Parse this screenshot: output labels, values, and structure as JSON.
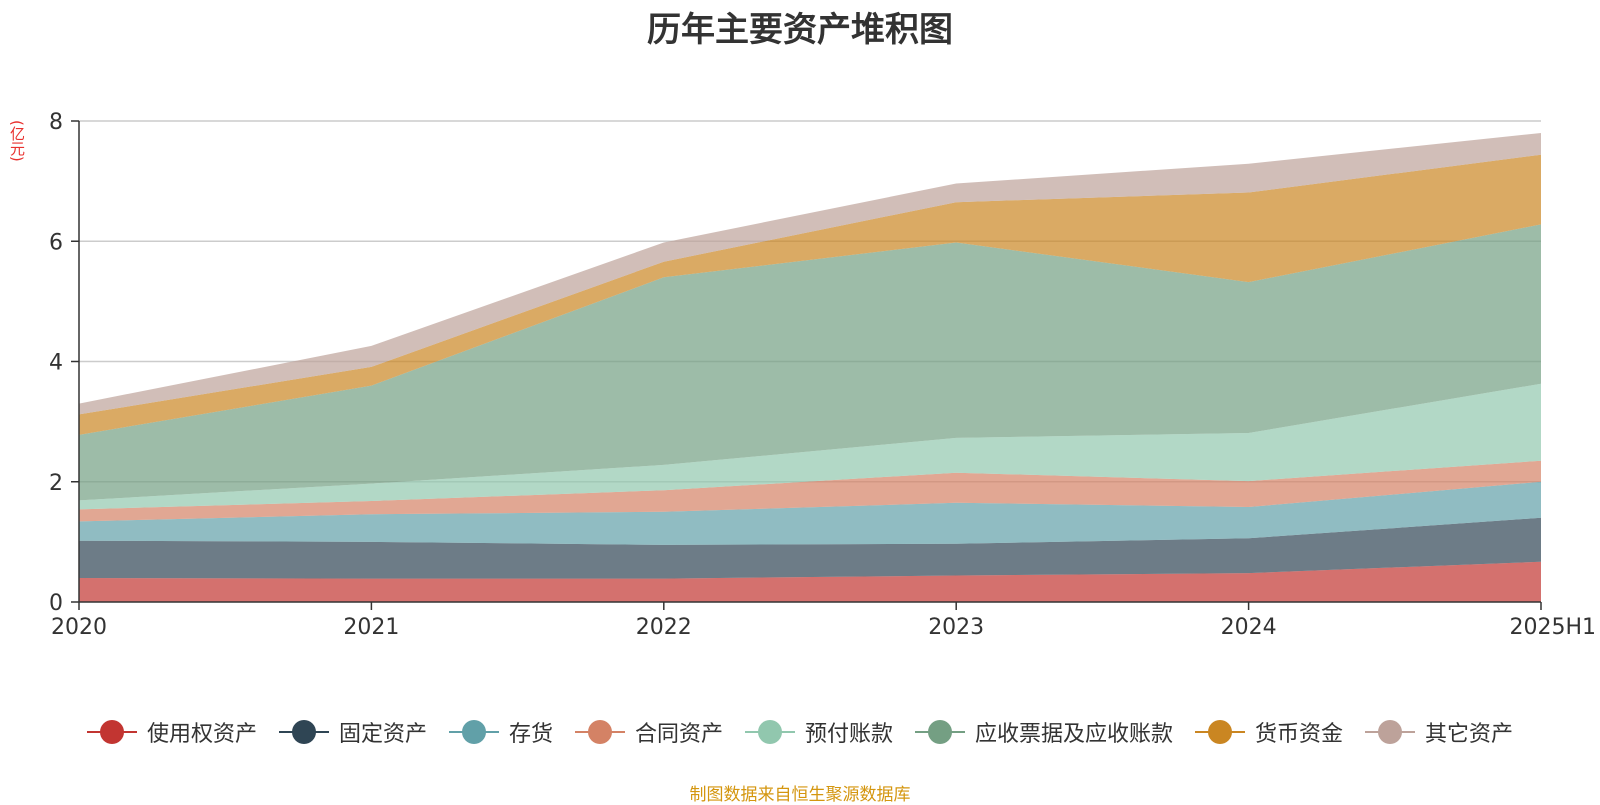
{
  "chart_data": {
    "type": "area",
    "stacked": true,
    "title": "历年主要资产堆积图",
    "ylabel": "(亿元)",
    "xlabel": "",
    "categories": [
      "2020",
      "2021",
      "2022",
      "2023",
      "2024",
      "2025H1"
    ],
    "ylim": [
      0,
      8
    ],
    "yticks": [
      0,
      2,
      4,
      6,
      8
    ],
    "grid": true,
    "legend_position": "bottom",
    "series": [
      {
        "name": "使用权资产",
        "color": "#c23531",
        "values": [
          0.4,
          0.39,
          0.39,
          0.44,
          0.48,
          0.67
        ]
      },
      {
        "name": "固定资产",
        "color": "#2f4554",
        "values": [
          0.62,
          0.61,
          0.56,
          0.53,
          0.58,
          0.73
        ]
      },
      {
        "name": "存货",
        "color": "#61a0a8",
        "values": [
          0.32,
          0.46,
          0.55,
          0.68,
          0.52,
          0.6
        ]
      },
      {
        "name": "合同资产",
        "color": "#d48265",
        "values": [
          0.2,
          0.22,
          0.36,
          0.5,
          0.43,
          0.35
        ]
      },
      {
        "name": "预付账款",
        "color": "#91c7ae",
        "values": [
          0.15,
          0.29,
          0.42,
          0.58,
          0.8,
          1.28
        ]
      },
      {
        "name": "应收票据及应收账款",
        "color": "#749f83",
        "values": [
          1.09,
          1.63,
          3.12,
          3.25,
          2.51,
          2.65
        ]
      },
      {
        "name": "货币资金",
        "color": "#ca8622",
        "values": [
          0.34,
          0.31,
          0.26,
          0.67,
          1.49,
          1.16
        ]
      },
      {
        "name": "其它资产",
        "color": "#bda29a",
        "values": [
          0.18,
          0.35,
          0.32,
          0.31,
          0.48,
          0.36
        ]
      }
    ]
  },
  "source_note": "制图数据来自恒生聚源数据库"
}
